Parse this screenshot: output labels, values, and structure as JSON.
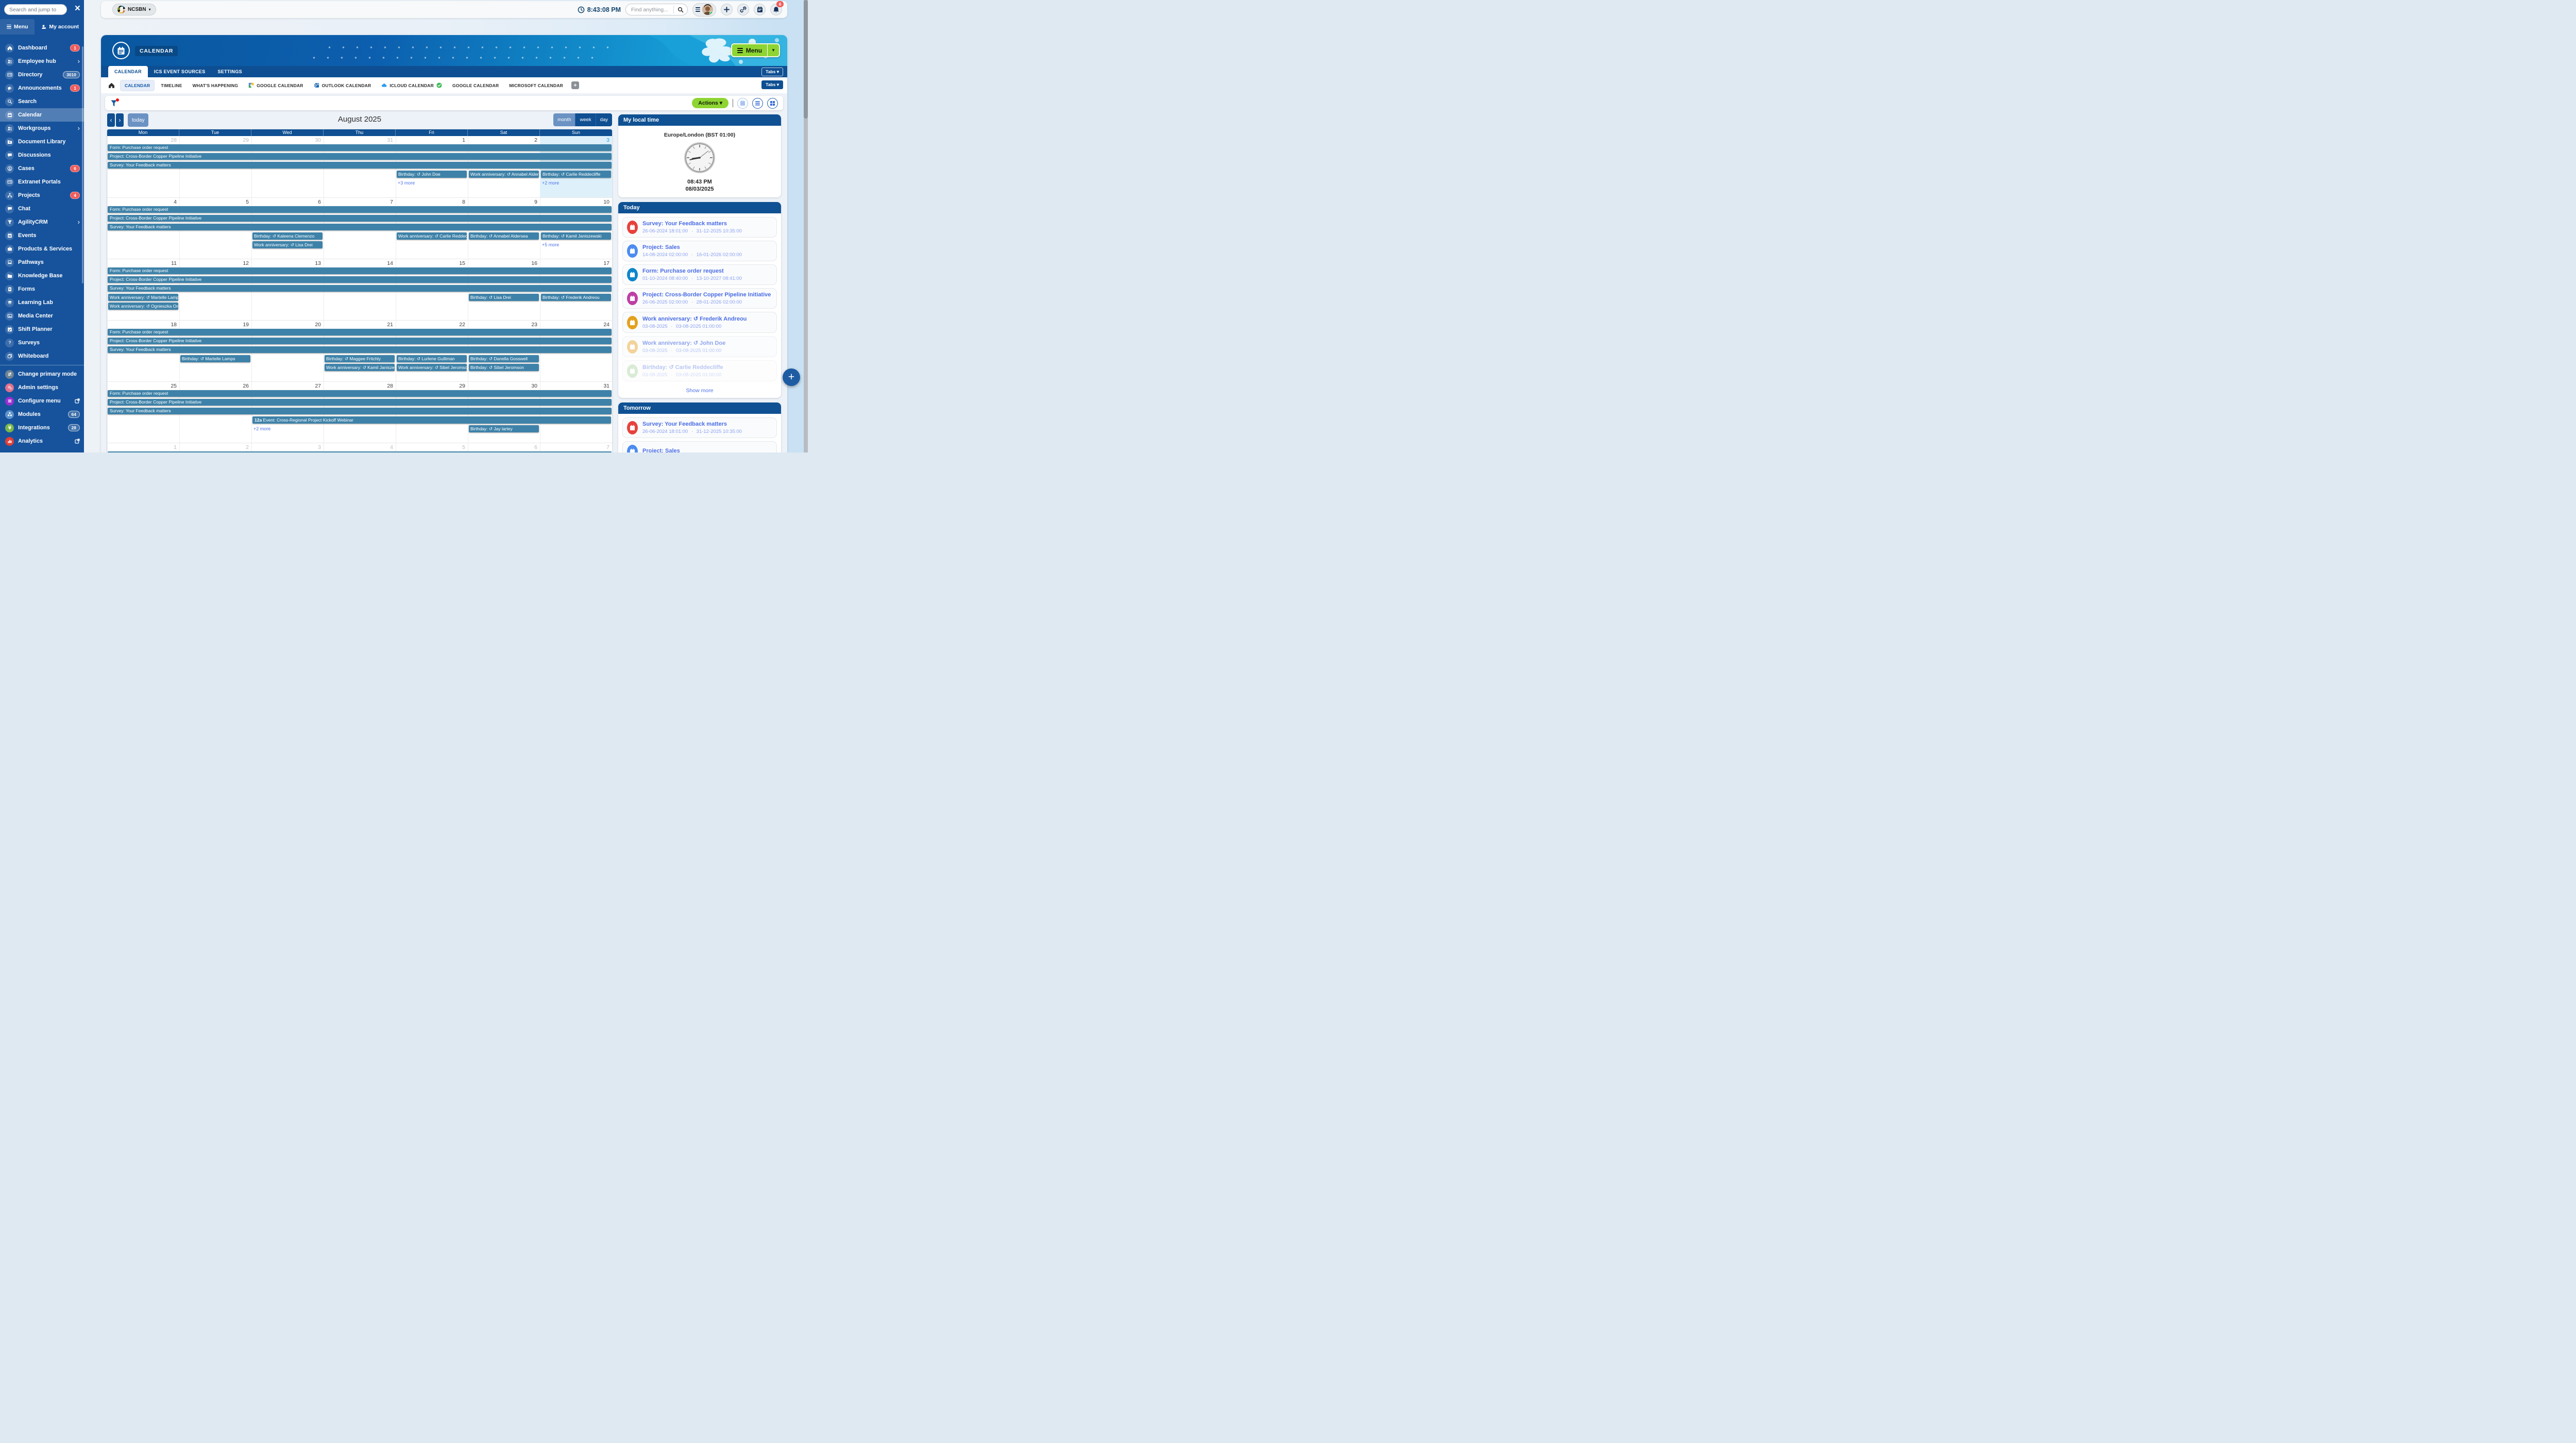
{
  "colors": {
    "sidebar_blue": "#17539c",
    "header_blue": "#0f5193",
    "accent_green": "#8ed433",
    "event_teal": "#3e82a9",
    "link_blue": "#4f74e8",
    "badge_red": "#f05b5c",
    "today_highlight": "#def1fb"
  },
  "sidebar": {
    "search_placeholder": "Search and jump to",
    "close_label": "×",
    "tabs": [
      {
        "label": "Menu",
        "icon": "hamburger",
        "active": true
      },
      {
        "label": "My account",
        "icon": "person"
      }
    ],
    "items": [
      {
        "label": "Dashboard",
        "icon": "home",
        "badge": "1",
        "badge_type": "red"
      },
      {
        "label": "Employee hub",
        "icon": "users",
        "chevron": true
      },
      {
        "label": "Directory",
        "icon": "id-card",
        "badge": "3010",
        "badge_type": "gray"
      },
      {
        "label": "Announcements",
        "icon": "megaphone",
        "badge": "1",
        "badge_type": "red"
      },
      {
        "label": "Search",
        "icon": "magnifier"
      },
      {
        "label": "Calendar",
        "icon": "calendar",
        "active": true
      },
      {
        "label": "Workgroups",
        "icon": "users",
        "chevron": true
      },
      {
        "label": "Document Library",
        "icon": "folder-plus"
      },
      {
        "label": "Discussions",
        "icon": "chat"
      },
      {
        "label": "Cases",
        "icon": "user-circle",
        "badge": "6",
        "badge_type": "red"
      },
      {
        "label": "Extranet Portals",
        "icon": "id-card"
      },
      {
        "label": "Projects",
        "icon": "sitemap",
        "badge": "4",
        "badge_type": "red"
      },
      {
        "label": "Chat",
        "icon": "chat"
      },
      {
        "label": "AgilityCRM",
        "icon": "funnel",
        "chevron": true
      },
      {
        "label": "Events",
        "icon": "calendar"
      },
      {
        "label": "Products & Services",
        "icon": "briefcase"
      },
      {
        "label": "Pathways",
        "icon": "laptop"
      },
      {
        "label": "Knowledge Base",
        "icon": "folder"
      },
      {
        "label": "Forms",
        "icon": "clipboard"
      },
      {
        "label": "Learning Lab",
        "icon": "graduation-cap"
      },
      {
        "label": "Media Center",
        "icon": "photo"
      },
      {
        "label": "Shift Planner",
        "icon": "calendar-check"
      },
      {
        "label": "Surveys",
        "icon": "question"
      },
      {
        "label": "Whiteboard",
        "icon": "layers"
      },
      {
        "label": "Change primary mode",
        "icon": "swap-arrows",
        "icon_bg": "#6e8393",
        "divider_before": true
      },
      {
        "label": "Admin settings",
        "icon": "gears",
        "icon_bg": "#e0708d"
      },
      {
        "label": "Configure menu",
        "icon": "menu-bars",
        "icon_bg": "#9a2fd0",
        "external": true
      },
      {
        "label": "Modules",
        "icon": "cubes",
        "icon_bg": "#5d93cc",
        "badge": "64",
        "badge_type": "gray"
      },
      {
        "label": "Integrations",
        "icon": "plug",
        "icon_bg": "#79b747",
        "badge": "28",
        "badge_type": "gray"
      },
      {
        "label": "Analytics",
        "icon": "chart-bars",
        "icon_bg": "#e23e37",
        "external": true
      }
    ]
  },
  "topbar": {
    "org": "NCSBN",
    "time": "8:43:08 PM",
    "find_placeholder": "Find anything...",
    "notification_count": "6"
  },
  "header": {
    "module_title": "CALENDAR",
    "menu_button": "Menu",
    "tabs": [
      {
        "label": "CALENDAR",
        "active": true
      },
      {
        "label": "ICS EVENT SOURCES"
      },
      {
        "label": "SETTINGS"
      }
    ],
    "tabs_dropdown": "Tabs",
    "subtabs": [
      {
        "label": "CALENDAR",
        "active": true
      },
      {
        "label": "TIMELINE"
      },
      {
        "label": "WHAT'S HAPPENING"
      },
      {
        "label": "GOOGLE CALENDAR",
        "icon": "google"
      },
      {
        "label": "OUTLOOK CALENDAR",
        "icon": "outlook"
      },
      {
        "label": "ICLOUD CALENDAR",
        "icon": "icloud",
        "check": true
      },
      {
        "label": "GOOGLE CALENDAR"
      },
      {
        "label": "MICROSOFT CALENDAR"
      }
    ],
    "subtabs_dropdown": "Tabs",
    "add_tab": "+"
  },
  "toolbar": {
    "actions": "Actions",
    "today": "today",
    "title": "August 2025",
    "views": [
      {
        "label": "month",
        "active": true
      },
      {
        "label": "week"
      },
      {
        "label": "day"
      }
    ]
  },
  "calendar": {
    "day_names": [
      "Mon",
      "Tue",
      "Wed",
      "Thu",
      "Fri",
      "Sat",
      "Sun"
    ],
    "weeks": [
      {
        "dates": [
          {
            "d": "28",
            "muted": true
          },
          {
            "d": "29",
            "muted": true
          },
          {
            "d": "30",
            "muted": true
          },
          {
            "d": "31",
            "muted": true
          },
          {
            "d": "1"
          },
          {
            "d": "2"
          },
          {
            "d": "3",
            "today": true
          }
        ],
        "bars": [
          "Form: Purchase order request",
          "Project: Cross-Border Copper Pipeline Initiative",
          "Survey: Your Feedback matters"
        ],
        "cells": [
          {
            "col": 5,
            "events": [
              "Birthday: ↺ John Doe"
            ],
            "more": "+3 more"
          },
          {
            "col": 6,
            "events": [
              "Work anniversary: ↺ Annabel Aldersea"
            ]
          },
          {
            "col": 7,
            "events": [
              "Birthday: ↺ Carlie Reddecliffe"
            ],
            "more": "+2 more"
          }
        ]
      },
      {
        "dates": [
          {
            "d": "4"
          },
          {
            "d": "5"
          },
          {
            "d": "6"
          },
          {
            "d": "7"
          },
          {
            "d": "8"
          },
          {
            "d": "9"
          },
          {
            "d": "10"
          }
        ],
        "bars": [
          "Form: Purchase order request",
          "Project: Cross-Border Copper Pipeline Initiative",
          "Survey: Your Feedback matters"
        ],
        "cells": [
          {
            "col": 3,
            "events": [
              "Birthday: ↺ Kaleena Clemenzo",
              "Work anniversary: ↺ Lisa Drei"
            ]
          },
          {
            "col": 5,
            "events": [
              "Work anniversary: ↺ Carlie Reddecliffe"
            ]
          },
          {
            "col": 6,
            "events": [
              "Birthday: ↺ Annabel Aldersea"
            ]
          },
          {
            "col": 7,
            "events": [
              "Birthday: ↺ Kamil Janiszewski"
            ],
            "more": "+5 more"
          }
        ]
      },
      {
        "dates": [
          {
            "d": "11"
          },
          {
            "d": "12"
          },
          {
            "d": "13"
          },
          {
            "d": "14"
          },
          {
            "d": "15"
          },
          {
            "d": "16"
          },
          {
            "d": "17"
          }
        ],
        "bars": [
          "Form: Purchase order request",
          "Project: Cross-Border Copper Pipeline Initiative",
          "Survey: Your Feedback matters"
        ],
        "cells": [
          {
            "col": 1,
            "events": [
              "Work anniversary: ↺ Martelle Lamps",
              "Work anniversary: ↺ Ognieszka Ordzi..."
            ]
          },
          {
            "col": 6,
            "events": [
              "Birthday: ↺ Lisa Drei"
            ]
          },
          {
            "col": 7,
            "events": [
              "Birthday: ↺ Frederik Andreou"
            ]
          }
        ]
      },
      {
        "dates": [
          {
            "d": "18"
          },
          {
            "d": "19"
          },
          {
            "d": "20"
          },
          {
            "d": "21"
          },
          {
            "d": "22"
          },
          {
            "d": "23"
          },
          {
            "d": "24"
          }
        ],
        "bars": [
          "Form: Purchase order request",
          "Project: Cross-Border Copper Pipeline Initiative",
          "Survey: Your Feedback matters"
        ],
        "cells": [
          {
            "col": 2,
            "events": [
              "Birthday: ↺ Martelle Lamps"
            ]
          },
          {
            "col": 4,
            "events": [
              "Birthday: ↺ Maggee Fritchly",
              "Work anniversary: ↺ Kamil Janiszewski"
            ]
          },
          {
            "col": 5,
            "events": [
              "Birthday: ↺ Lurlene Gulliman",
              "Work anniversary: ↺ Sibel Jeromson"
            ]
          },
          {
            "col": 6,
            "events": [
              "Birthday: ↺ Danella Gosswell",
              "Birthday: ↺ Sibel Jeromson"
            ]
          }
        ]
      },
      {
        "dates": [
          {
            "d": "25"
          },
          {
            "d": "26"
          },
          {
            "d": "27"
          },
          {
            "d": "28"
          },
          {
            "d": "29"
          },
          {
            "d": "30"
          },
          {
            "d": "31"
          }
        ],
        "bars": [
          "Form: Purchase order request",
          "Project: Cross-Border Copper Pipeline Initiative",
          "Survey: Your Feedback matters"
        ],
        "span": {
          "start": 3,
          "end": 7,
          "time": "12a",
          "label": "Event: Cross-Regional Project Kickoff Webinar"
        },
        "cells": [
          {
            "col": 3,
            "more": "+2 more"
          },
          {
            "col": 6,
            "events": [
              "Birthday: ↺ Jay lartey"
            ]
          }
        ]
      },
      {
        "dates": [
          {
            "d": "1",
            "muted": true
          },
          {
            "d": "2",
            "muted": true
          },
          {
            "d": "3",
            "muted": true
          },
          {
            "d": "4",
            "muted": true
          },
          {
            "d": "5",
            "muted": true
          },
          {
            "d": "6",
            "muted": true
          },
          {
            "d": "7",
            "muted": true
          }
        ],
        "bars": [
          "Form: Purchase order request"
        ],
        "cells": [],
        "cut": true
      }
    ]
  },
  "panel": {
    "local_time": {
      "title": "My local time",
      "timezone": "Europe/London (BST 01:00)",
      "time": "08:43 PM",
      "date": "08/03/2025"
    },
    "today": {
      "title": "Today",
      "show_more": "Show more",
      "items": [
        {
          "title": "Survey: Your Feedback matters",
          "start": "26-06-2024 18:01:00",
          "end": "31-12-2025 10:35:00",
          "color": "#e8413c"
        },
        {
          "title": "Project: Sales",
          "start": "14-08-2024 02:00:00",
          "end": "16-01-2026 02:00:00",
          "color": "#4d8cf0"
        },
        {
          "title": "Form: Purchase order request",
          "start": "01-10-2024 08:40:00",
          "end": "13-10-2027 08:41:00",
          "color": "#0d86ca"
        },
        {
          "title": "Project: Cross-Border Copper Pipeline Initiative",
          "start": "26-06-2025 02:00:00",
          "end": "28-01-2026 02:00:00",
          "color": "#bd3fa4"
        },
        {
          "title": "Work anniversary: ↺ Frederik Andreou",
          "start": "03-08-2025",
          "end": "03-08-2025 01:00:00",
          "color": "#e3a11c"
        },
        {
          "title": "Work anniversary: ↺ John Doe",
          "start": "03-08-2025",
          "end": "03-08-2025 01:00:00",
          "color": "#edb95e",
          "faded": 1
        },
        {
          "title": "Birthday: ↺ Carlie Reddecliffe",
          "start": "03-08-2025",
          "end": "03-08-2025 01:00:00",
          "color": "#9ccb93",
          "faded": 2
        }
      ]
    },
    "tomorrow": {
      "title": "Tomorrow",
      "items": [
        {
          "title": "Survey: Your Feedback matters",
          "start": "26-06-2024 18:01:00",
          "end": "31-12-2025 10:35:00",
          "color": "#e8413c"
        },
        {
          "title": "Project: Sales",
          "color": "#4d8cf0"
        }
      ]
    }
  },
  "fab": "+"
}
